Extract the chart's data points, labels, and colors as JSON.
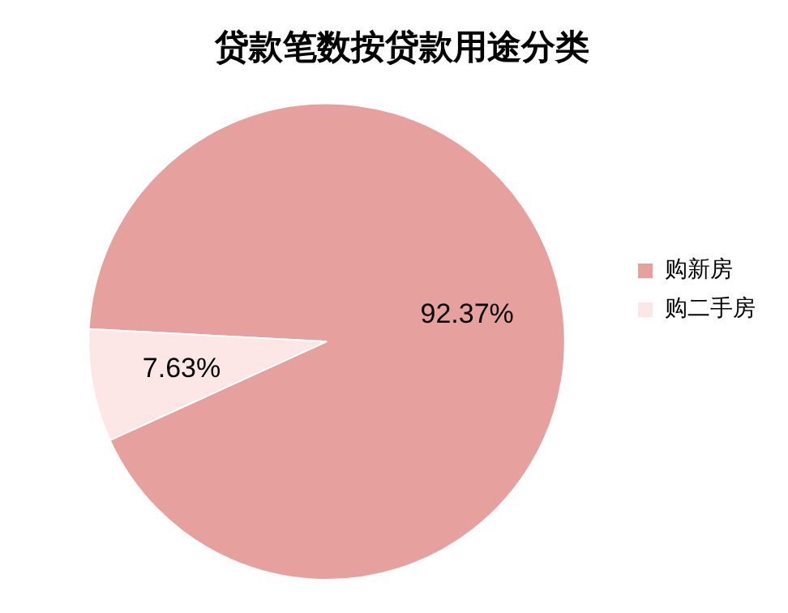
{
  "chart_data": {
    "type": "pie",
    "title": "贷款笔数按贷款用途分类",
    "categories": [
      "购新房",
      "购二手房"
    ],
    "values": [
      92.37,
      7.63
    ],
    "colors": [
      "#e6a19f",
      "#fde6e6"
    ],
    "value_labels": [
      "92.37%",
      "7.63%"
    ],
    "legend": "right"
  }
}
